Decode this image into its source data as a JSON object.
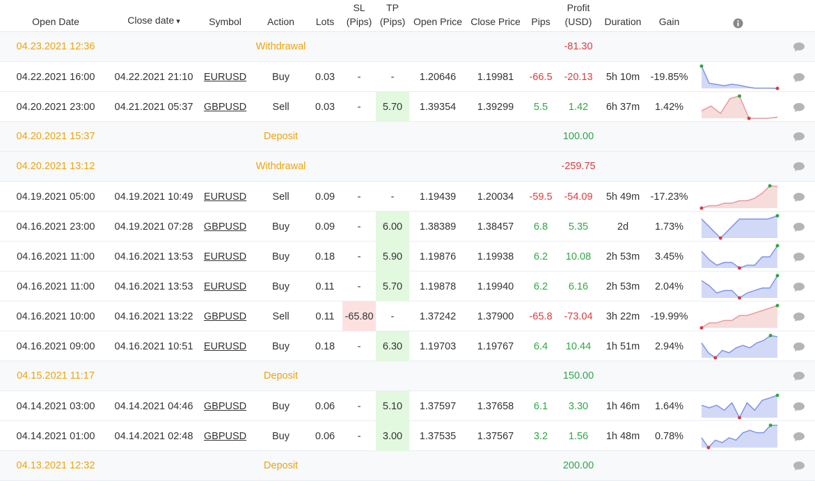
{
  "header": [
    [
      "Open Date"
    ],
    [
      "Close date"
    ],
    [
      "Symbol"
    ],
    [
      "Action"
    ],
    [
      "Lots"
    ],
    [
      "SL",
      "(Pips)"
    ],
    [
      "TP",
      "(Pips)"
    ],
    [
      "Open Price"
    ],
    [
      "Close Price"
    ],
    [
      "Pips"
    ],
    [
      "Profit",
      "(USD)"
    ],
    [
      "Duration"
    ],
    [
      "Gain"
    ]
  ],
  "rows": [
    {
      "date": "04.23.2021 12:36",
      "type": "Withdrawal",
      "profit": "-81.30"
    },
    {
      "open": "04.22.2021 16:00",
      "close": "04.22.2021 21:10",
      "symbol": "EURUSD",
      "action": "Buy",
      "lots": "0.03",
      "sl": "-",
      "tp": "-",
      "open_price": "1.20646",
      "close_price": "1.19981",
      "pips": "-66.5",
      "profit": "-20.13",
      "duration": "5h 10m",
      "gain": "-19.85%",
      "spark_color": "#7f93e8",
      "sparkline": [
        10,
        3,
        2.5,
        2,
        2.6,
        2.2,
        1.5,
        1,
        1,
        1,
        0.9
      ]
    },
    {
      "open": "04.20.2021 23:00",
      "close": "04.21.2021 05:37",
      "symbol": "GBPUSD",
      "action": "Sell",
      "lots": "0.03",
      "sl": "-",
      "tp": "5.70",
      "open_price": "1.39354",
      "close_price": "1.39299",
      "pips": "5.5",
      "profit": "1.42",
      "duration": "6h 37m",
      "gain": "1.42%",
      "spark_color": "#e89a9a",
      "sparkline": [
        4,
        6,
        3,
        9,
        10,
        1,
        1,
        1,
        1.5
      ]
    },
    {
      "date": "04.20.2021 15:37",
      "type": "Deposit",
      "profit": "100.00"
    },
    {
      "date": "04.20.2021 13:12",
      "type": "Withdrawal",
      "profit": "-259.75"
    },
    {
      "open": "04.19.2021 05:00",
      "close": "04.19.2021 10:49",
      "symbol": "EURUSD",
      "action": "Sell",
      "lots": "0.09",
      "sl": "-",
      "tp": "-",
      "open_price": "1.19439",
      "close_price": "1.20034",
      "pips": "-59.5",
      "profit": "-54.09",
      "duration": "5h 49m",
      "gain": "-17.23%",
      "spark_color": "#e89a9a",
      "sparkline": [
        1,
        2,
        2,
        3,
        3,
        4,
        4,
        5,
        7,
        10,
        9.8
      ]
    },
    {
      "open": "04.16.2021 23:00",
      "close": "04.19.2021 07:28",
      "symbol": "GBPUSD",
      "action": "Buy",
      "lots": "0.09",
      "sl": "-",
      "tp": "6.00",
      "open_price": "1.38389",
      "close_price": "1.38457",
      "pips": "6.8",
      "profit": "5.35",
      "duration": "2d",
      "gain": "1.73%",
      "spark_color": "#7f93e8",
      "sparkline": [
        7,
        4,
        1,
        4,
        7,
        7,
        7,
        7,
        8
      ]
    },
    {
      "open": "04.16.2021 11:00",
      "close": "04.16.2021 13:53",
      "symbol": "EURUSD",
      "action": "Buy",
      "lots": "0.18",
      "sl": "-",
      "tp": "5.90",
      "open_price": "1.19876",
      "close_price": "1.19938",
      "pips": "6.2",
      "profit": "10.08",
      "duration": "2h 53m",
      "gain": "3.45%",
      "spark_color": "#7f93e8",
      "sparkline": [
        8,
        5,
        3,
        4,
        4,
        2,
        3,
        3,
        6,
        6,
        10
      ]
    },
    {
      "open": "04.16.2021 11:00",
      "close": "04.16.2021 13:53",
      "symbol": "EURUSD",
      "action": "Buy",
      "lots": "0.11",
      "sl": "-",
      "tp": "5.70",
      "open_price": "1.19878",
      "close_price": "1.19940",
      "pips": "6.2",
      "profit": "6.16",
      "duration": "2h 53m",
      "gain": "2.04%",
      "spark_color": "#7f93e8",
      "sparkline": [
        8,
        6,
        3,
        4,
        4,
        1,
        3,
        4,
        5,
        5,
        10
      ]
    },
    {
      "open": "04.16.2021 10:00",
      "close": "04.16.2021 13:22",
      "symbol": "GBPUSD",
      "action": "Sell",
      "lots": "0.11",
      "sl": "-65.80",
      "tp": "-",
      "open_price": "1.37242",
      "close_price": "1.37900",
      "pips": "-65.8",
      "profit": "-73.04",
      "duration": "3h 22m",
      "gain": "-19.99%",
      "spark_color": "#e89a9a",
      "sparkline": [
        1,
        3,
        3,
        4,
        4,
        6,
        6,
        7,
        8,
        9,
        10
      ]
    },
    {
      "open": "04.16.2021 09:00",
      "close": "04.16.2021 10:51",
      "symbol": "EURUSD",
      "action": "Buy",
      "lots": "0.18",
      "sl": "-",
      "tp": "6.30",
      "open_price": "1.19703",
      "close_price": "1.19767",
      "pips": "6.4",
      "profit": "10.44",
      "duration": "1h 51m",
      "gain": "2.94%",
      "spark_color": "#7f93e8",
      "sparkline": [
        7,
        3,
        1,
        4,
        3,
        5,
        6,
        5,
        7,
        8,
        10,
        9.5
      ]
    },
    {
      "date": "04.15.2021 11:17",
      "type": "Deposit",
      "profit": "150.00"
    },
    {
      "open": "04.14.2021 03:00",
      "close": "04.14.2021 04:46",
      "symbol": "GBPUSD",
      "action": "Buy",
      "lots": "0.06",
      "sl": "-",
      "tp": "5.10",
      "open_price": "1.37597",
      "close_price": "1.37658",
      "pips": "6.1",
      "profit": "3.30",
      "duration": "1h 46m",
      "gain": "1.64%",
      "spark_color": "#7f93e8",
      "sparkline": [
        6,
        5,
        6,
        4,
        7,
        1,
        7,
        4,
        8,
        9,
        10
      ]
    },
    {
      "open": "04.14.2021 01:00",
      "close": "04.14.2021 02:48",
      "symbol": "GBPUSD",
      "action": "Buy",
      "lots": "0.06",
      "sl": "-",
      "tp": "3.00",
      "open_price": "1.37535",
      "close_price": "1.37567",
      "pips": "3.2",
      "profit": "1.56",
      "duration": "1h 48m",
      "gain": "0.78%",
      "spark_color": "#7f93e8",
      "sparkline": [
        5,
        1,
        4,
        3,
        5,
        4,
        7,
        8,
        7,
        7,
        10,
        10
      ]
    },
    {
      "date": "04.13.2021 12:32",
      "type": "Deposit",
      "profit": "200.00"
    }
  ]
}
